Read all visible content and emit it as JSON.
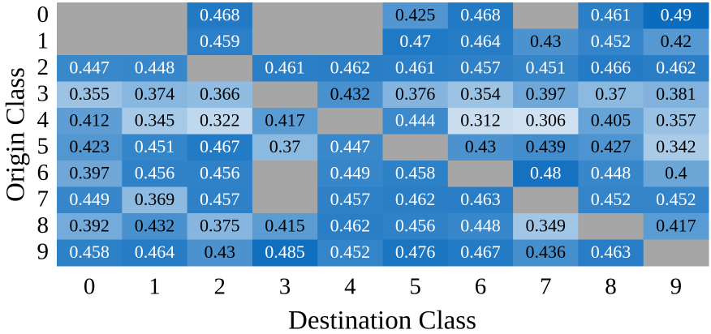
{
  "chart_data": {
    "type": "heatmap",
    "xlabel": "Destination Class",
    "ylabel": "Origin Class",
    "x_categories": [
      "0",
      "1",
      "2",
      "3",
      "4",
      "5",
      "6",
      "7",
      "8",
      "9"
    ],
    "y_categories": [
      "0",
      "1",
      "2",
      "3",
      "4",
      "5",
      "6",
      "7",
      "8",
      "9"
    ],
    "colormap": [
      "#d0e2f2",
      "#0b6cbe"
    ],
    "missing_color": "#a6a6a6",
    "values": [
      [
        null,
        null,
        0.468,
        null,
        null,
        0.425,
        0.468,
        null,
        0.461,
        0.49
      ],
      [
        null,
        null,
        0.459,
        null,
        null,
        0.47,
        0.464,
        0.43,
        0.452,
        0.42
      ],
      [
        0.447,
        0.448,
        null,
        0.461,
        0.462,
        0.461,
        0.457,
        0.451,
        0.466,
        0.462
      ],
      [
        0.355,
        0.374,
        0.366,
        null,
        0.432,
        0.376,
        0.354,
        0.397,
        0.37,
        0.381
      ],
      [
        0.412,
        0.345,
        0.322,
        0.417,
        null,
        0.444,
        0.312,
        0.306,
        0.405,
        0.357
      ],
      [
        0.423,
        0.451,
        0.467,
        0.37,
        0.447,
        null,
        0.43,
        0.439,
        0.427,
        0.342
      ],
      [
        0.397,
        0.456,
        0.456,
        null,
        0.449,
        0.458,
        null,
        0.48,
        0.448,
        0.4
      ],
      [
        0.449,
        0.369,
        0.457,
        null,
        0.457,
        0.462,
        0.463,
        null,
        0.452,
        0.452
      ],
      [
        0.392,
        0.432,
        0.375,
        0.415,
        0.462,
        0.456,
        0.448,
        0.349,
        null,
        0.417
      ],
      [
        0.458,
        0.464,
        0.43,
        0.485,
        0.452,
        0.476,
        0.467,
        0.436,
        0.463,
        null
      ]
    ]
  }
}
